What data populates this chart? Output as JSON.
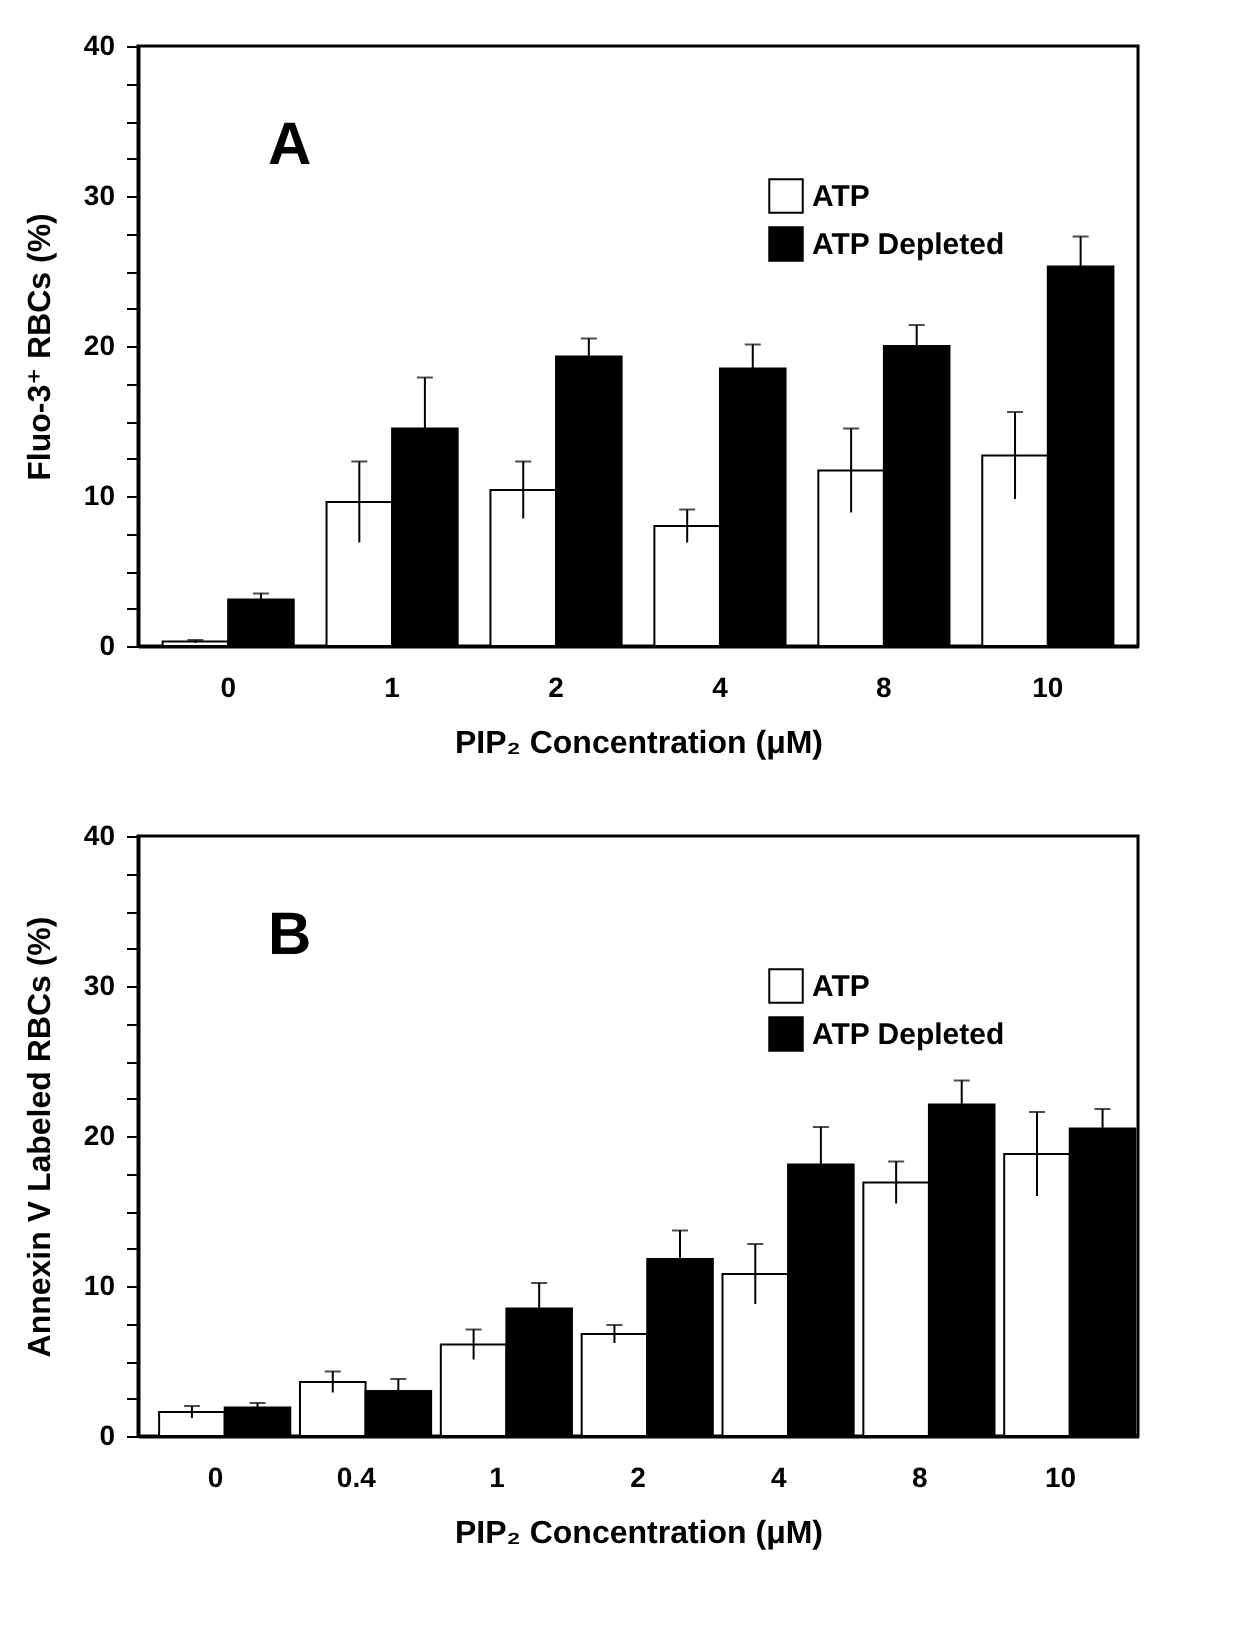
{
  "chart_data": [
    {
      "type": "bar",
      "ylabel": "Fluo-3⁺ RBCs (%)",
      "xlabel": "PIP₂ Concentration (μM)",
      "annotations": [
        "A"
      ],
      "categories": [
        "0",
        "1",
        "2",
        "4",
        "8",
        "10"
      ],
      "series": [
        {
          "name": "ATP",
          "color": "#ffffff",
          "values": [
            0.3,
            9.6,
            10.4,
            8.0,
            11.7,
            12.7
          ],
          "errors": [
            0.1,
            2.7,
            1.9,
            1.1,
            2.8,
            2.9
          ]
        },
        {
          "name": "ATP Depleted",
          "color": "#000000",
          "values": [
            3.1,
            14.5,
            19.3,
            18.5,
            20.0,
            25.3
          ],
          "errors": [
            0.4,
            3.4,
            1.2,
            1.6,
            1.4,
            2.0
          ]
        }
      ],
      "ylim": [
        0,
        40
      ],
      "yticks": [
        0,
        {
          "value": 2.5,
          "label": null
        },
        {
          "value": 5,
          "label": null
        },
        {
          "value": 7.5,
          "label": null
        },
        10,
        {
          "value": 12.5,
          "label": null
        },
        {
          "value": 15,
          "label": null
        },
        {
          "value": 17.5,
          "label": null
        },
        20,
        {
          "value": 22.5,
          "label": null
        },
        {
          "value": 25,
          "label": null
        },
        {
          "value": 27.5,
          "label": null
        },
        30,
        {
          "value": 32.5,
          "label": null
        },
        {
          "value": 35,
          "label": null
        },
        {
          "value": 37.5,
          "label": null
        },
        40
      ],
      "grid": false,
      "legend": "top right"
    },
    {
      "type": "bar",
      "ylabel": "Annexin V Labeled RBCs (%)",
      "xlabel": "PIP₂ Concentration (μM)",
      "annotations": [
        "B"
      ],
      "categories": [
        "0",
        "0.4",
        "1",
        "2",
        "4",
        "8",
        "10"
      ],
      "series": [
        {
          "name": "ATP",
          "color": "#ffffff",
          "values": [
            1.6,
            3.6,
            6.1,
            6.8,
            10.8,
            16.9,
            18.8
          ],
          "errors": [
            0.4,
            0.7,
            1.0,
            0.6,
            2.0,
            1.4,
            2.8
          ]
        },
        {
          "name": "ATP Depleted",
          "color": "#000000",
          "values": [
            1.9,
            3.0,
            8.5,
            11.8,
            18.1,
            22.1,
            20.5
          ],
          "errors": [
            0.3,
            0.8,
            1.7,
            1.9,
            2.5,
            1.6,
            1.3
          ]
        }
      ],
      "ylim": [
        0,
        40
      ],
      "yticks": [
        0,
        {
          "value": 2.5,
          "label": null
        },
        {
          "value": 5,
          "label": null
        },
        {
          "value": 7.5,
          "label": null
        },
        10,
        {
          "value": 12.5,
          "label": null
        },
        {
          "value": 15,
          "label": null
        },
        {
          "value": 17.5,
          "label": null
        },
        20,
        {
          "value": 22.5,
          "label": null
        },
        {
          "value": 25,
          "label": null
        },
        {
          "value": 27.5,
          "label": null
        },
        30,
        {
          "value": 32.5,
          "label": null
        },
        {
          "value": 35,
          "label": null
        },
        {
          "value": 37.5,
          "label": null
        },
        40
      ],
      "grid": false,
      "legend": "top right"
    }
  ]
}
